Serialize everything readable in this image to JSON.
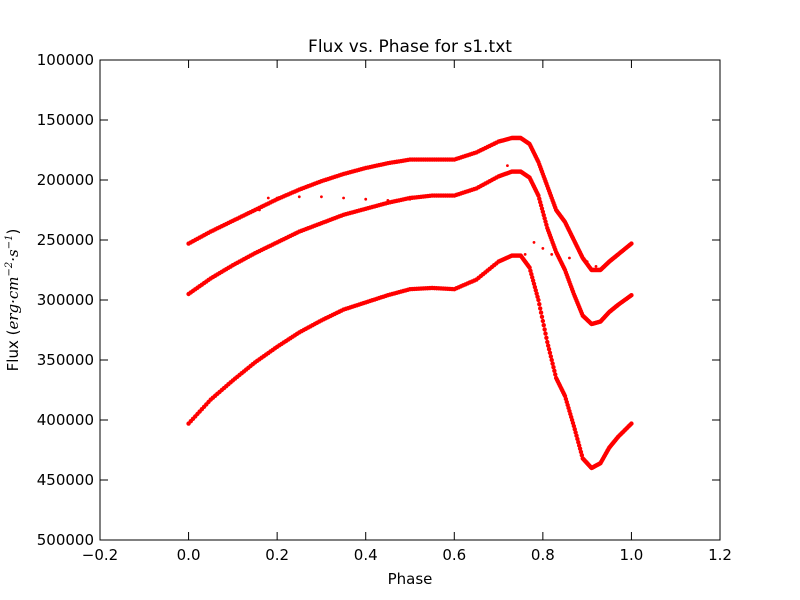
{
  "chart_data": {
    "type": "scatter",
    "title": "Flux vs. Phase for s1.txt",
    "xlabel": "Phase",
    "ylabel": {
      "prefix": "Flux (",
      "math": "erg·cm",
      "exp1": "−2",
      "math2": "·s",
      "exp2": "−1",
      "suffix": ")"
    },
    "xlim": [
      -0.2,
      1.2
    ],
    "ylim": [
      100000,
      500000
    ],
    "y_inverted": true,
    "xticks": [
      -0.2,
      0.0,
      0.2,
      0.4,
      0.6,
      0.8,
      1.0,
      1.2
    ],
    "xtick_labels": [
      "−0.2",
      "0.0",
      "0.2",
      "0.4",
      "0.6",
      "0.8",
      "1.0",
      "1.2"
    ],
    "yticks": [
      100000,
      150000,
      200000,
      250000,
      300000,
      350000,
      400000,
      450000,
      500000
    ],
    "ytick_labels": [
      "100000",
      "150000",
      "200000",
      "250000",
      "300000",
      "350000",
      "400000",
      "450000",
      "500000"
    ],
    "marker_color": "#ff0000",
    "grid": false,
    "series": [
      {
        "points": [
          [
            0.0,
            253000
          ],
          [
            0.05,
            243000
          ],
          [
            0.1,
            234000
          ],
          [
            0.15,
            225000
          ],
          [
            0.2,
            216000
          ],
          [
            0.25,
            208000
          ],
          [
            0.3,
            201000
          ],
          [
            0.35,
            195000
          ],
          [
            0.4,
            190000
          ],
          [
            0.45,
            186000
          ],
          [
            0.5,
            183000
          ],
          [
            0.55,
            183000
          ],
          [
            0.6,
            183000
          ],
          [
            0.65,
            177000
          ],
          [
            0.7,
            168000
          ],
          [
            0.73,
            165000
          ],
          [
            0.75,
            165000
          ],
          [
            0.77,
            170000
          ],
          [
            0.79,
            185000
          ],
          [
            0.81,
            205000
          ],
          [
            0.83,
            225000
          ],
          [
            0.85,
            235000
          ],
          [
            0.87,
            250000
          ],
          [
            0.89,
            265000
          ],
          [
            0.91,
            275000
          ],
          [
            0.93,
            275000
          ],
          [
            0.95,
            268000
          ],
          [
            0.97,
            262000
          ],
          [
            1.0,
            253000
          ]
        ]
      },
      {
        "points": [
          [
            0.0,
            295000
          ],
          [
            0.05,
            282000
          ],
          [
            0.1,
            271000
          ],
          [
            0.15,
            261000
          ],
          [
            0.2,
            252000
          ],
          [
            0.25,
            243000
          ],
          [
            0.3,
            236000
          ],
          [
            0.35,
            229000
          ],
          [
            0.4,
            224000
          ],
          [
            0.45,
            219000
          ],
          [
            0.5,
            215000
          ],
          [
            0.55,
            213000
          ],
          [
            0.6,
            213000
          ],
          [
            0.65,
            207000
          ],
          [
            0.7,
            197000
          ],
          [
            0.73,
            193000
          ],
          [
            0.75,
            193000
          ],
          [
            0.77,
            198000
          ],
          [
            0.79,
            213000
          ],
          [
            0.81,
            240000
          ],
          [
            0.83,
            260000
          ],
          [
            0.85,
            275000
          ],
          [
            0.87,
            295000
          ],
          [
            0.89,
            313000
          ],
          [
            0.91,
            320000
          ],
          [
            0.93,
            318000
          ],
          [
            0.95,
            310000
          ],
          [
            0.97,
            304000
          ],
          [
            1.0,
            296000
          ]
        ]
      },
      {
        "points": [
          [
            0.0,
            403000
          ],
          [
            0.05,
            383000
          ],
          [
            0.1,
            367000
          ],
          [
            0.15,
            352000
          ],
          [
            0.2,
            339000
          ],
          [
            0.25,
            327000
          ],
          [
            0.3,
            317000
          ],
          [
            0.35,
            308000
          ],
          [
            0.4,
            302000
          ],
          [
            0.45,
            296000
          ],
          [
            0.5,
            291000
          ],
          [
            0.55,
            290000
          ],
          [
            0.6,
            291000
          ],
          [
            0.65,
            283000
          ],
          [
            0.7,
            268000
          ],
          [
            0.73,
            263000
          ],
          [
            0.75,
            263000
          ],
          [
            0.77,
            273000
          ],
          [
            0.79,
            300000
          ],
          [
            0.81,
            335000
          ],
          [
            0.83,
            365000
          ],
          [
            0.85,
            380000
          ],
          [
            0.87,
            405000
          ],
          [
            0.89,
            432000
          ],
          [
            0.91,
            440000
          ],
          [
            0.93,
            436000
          ],
          [
            0.95,
            423000
          ],
          [
            0.97,
            414000
          ],
          [
            1.0,
            403000
          ]
        ]
      },
      {
        "points": [
          [
            0.16,
            225000
          ],
          [
            0.18,
            215000
          ],
          [
            0.2,
            215000
          ],
          [
            0.25,
            214000
          ],
          [
            0.3,
            214000
          ],
          [
            0.35,
            215000
          ],
          [
            0.4,
            216000
          ],
          [
            0.45,
            217000
          ],
          [
            0.5,
            216000
          ]
        ]
      },
      {
        "points": [
          [
            0.7,
            197000
          ],
          [
            0.72,
            188000
          ],
          [
            0.76,
            262000
          ],
          [
            0.78,
            252000
          ],
          [
            0.8,
            257000
          ],
          [
            0.82,
            262000
          ],
          [
            0.84,
            268000
          ],
          [
            0.86,
            265000
          ],
          [
            0.88,
            258000
          ],
          [
            0.9,
            268000
          ],
          [
            0.92,
            272000
          ]
        ]
      }
    ]
  }
}
